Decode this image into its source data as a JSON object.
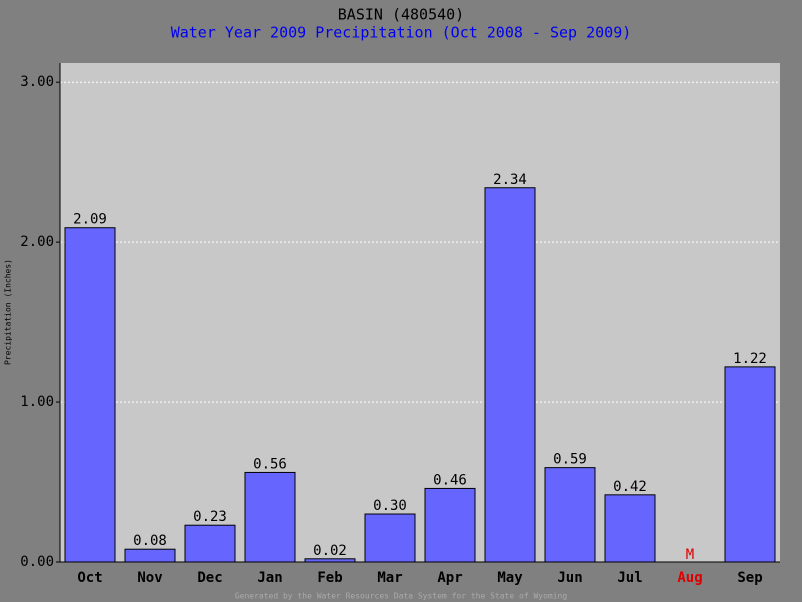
{
  "chart_data": {
    "type": "bar",
    "title": "BASIN (480540)",
    "subtitle": "Water Year 2009 Precipitation (Oct 2008 - Sep 2009)",
    "y_label": "Precipitation (Inches)",
    "footer": "Generated by the Water Resources Data System for the State of Wyoming",
    "categories": [
      "Oct",
      "Nov",
      "Dec",
      "Jan",
      "Feb",
      "Mar",
      "Apr",
      "May",
      "Jun",
      "Jul",
      "Aug",
      "Sep"
    ],
    "values": [
      2.09,
      0.08,
      0.23,
      0.56,
      0.02,
      0.3,
      0.46,
      2.34,
      0.59,
      0.42,
      null,
      1.22
    ],
    "value_labels": [
      "2.09",
      "0.08",
      "0.23",
      "0.56",
      "0.02",
      "0.30",
      "0.46",
      "2.34",
      "0.59",
      "0.42",
      "M",
      "1.22"
    ],
    "color": "#6666ff",
    "missing_color": "#dd0000",
    "ylim": [
      0,
      3.12
    ],
    "yticks": [
      {
        "value": 0,
        "label": "0.00"
      },
      {
        "value": 1,
        "label": "1.00"
      },
      {
        "value": 2,
        "label": "2.00"
      },
      {
        "value": 3,
        "label": "3.00"
      }
    ],
    "grid": true
  }
}
